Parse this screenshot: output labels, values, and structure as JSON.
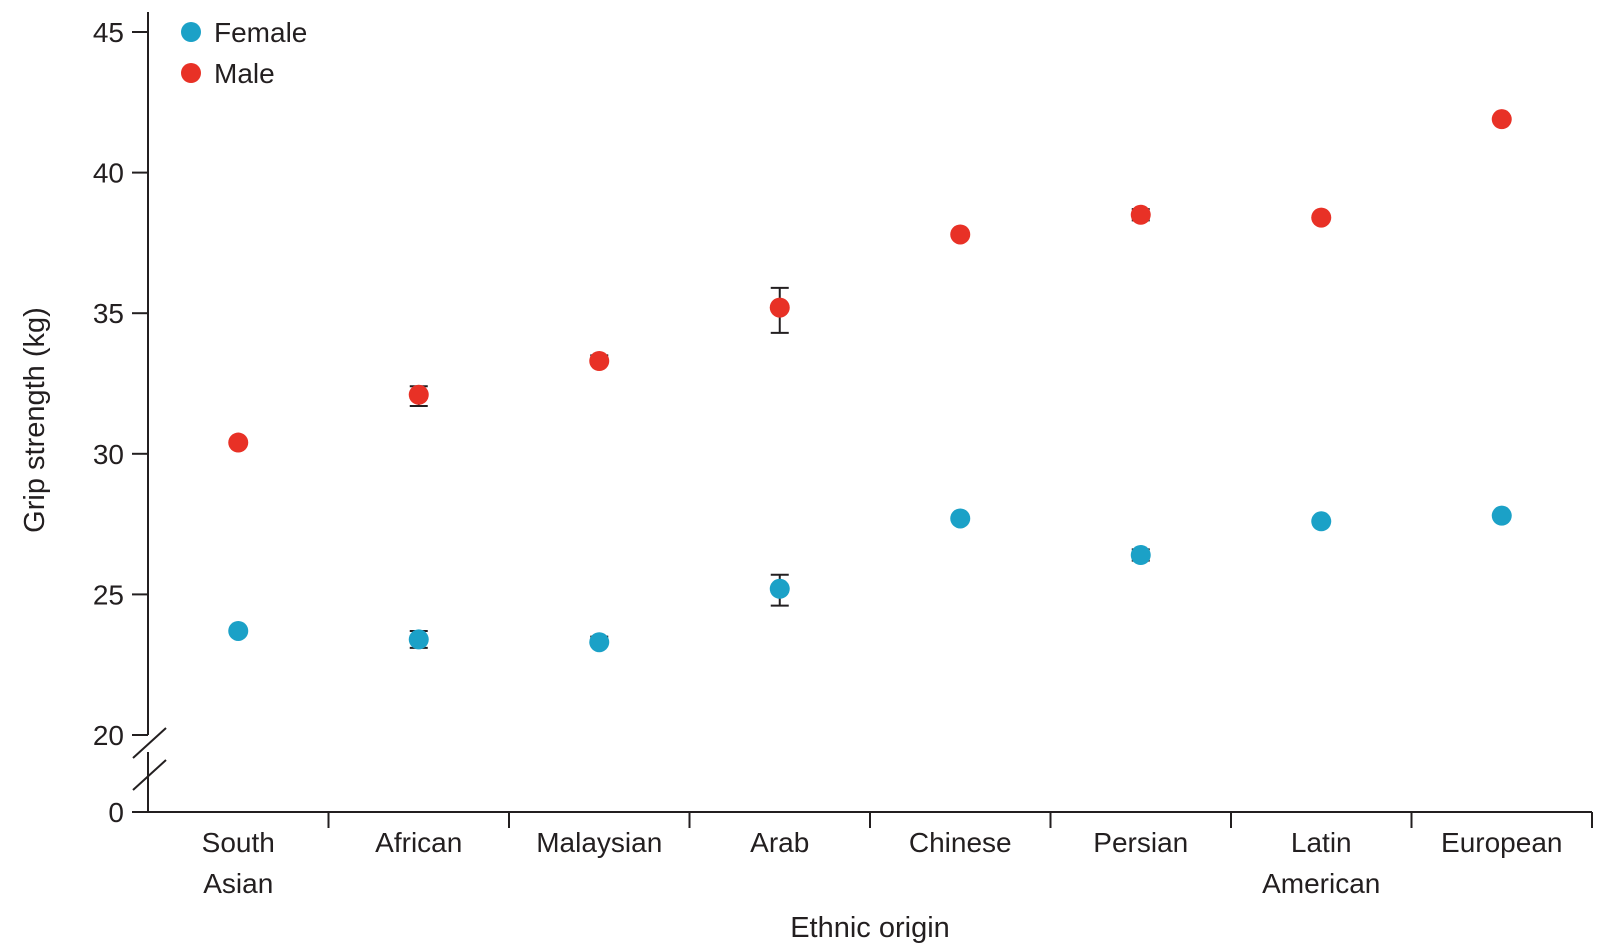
{
  "chart_data": {
    "type": "scatter",
    "xlabel": "Ethnic origin",
    "ylabel": "Grip strength (kg)",
    "categories": [
      [
        "South",
        "Asian"
      ],
      [
        "African"
      ],
      [
        "Malaysian"
      ],
      [
        "Arab"
      ],
      [
        "Chinese"
      ],
      [
        "Persian"
      ],
      [
        "Latin",
        "American"
      ],
      [
        "European"
      ]
    ],
    "yticks": [
      "45",
      "40",
      "35",
      "30",
      "25",
      "20",
      "0"
    ],
    "ylim": [
      20,
      45
    ],
    "y_axis_break": "between 0 and 20",
    "grid": false,
    "legend_position": "top-left",
    "series": [
      {
        "name": "Female",
        "color": "#1ba1c7",
        "values": [
          23.7,
          23.4,
          23.3,
          25.2,
          27.7,
          26.4,
          27.6,
          27.8
        ],
        "error_low": [
          23.6,
          23.1,
          23.2,
          24.6,
          27.7,
          26.2,
          27.6,
          27.7
        ],
        "error_high": [
          23.8,
          23.7,
          23.5,
          25.7,
          27.7,
          26.6,
          27.6,
          27.9
        ]
      },
      {
        "name": "Male",
        "color": "#e83126",
        "values": [
          30.4,
          32.1,
          33.3,
          35.2,
          37.8,
          38.5,
          38.4,
          41.9
        ],
        "error_low": [
          30.3,
          31.7,
          33.2,
          34.3,
          37.8,
          38.3,
          38.4,
          41.8
        ],
        "error_high": [
          30.5,
          32.4,
          33.5,
          35.9,
          37.8,
          38.7,
          38.4,
          42.0
        ]
      }
    ]
  }
}
